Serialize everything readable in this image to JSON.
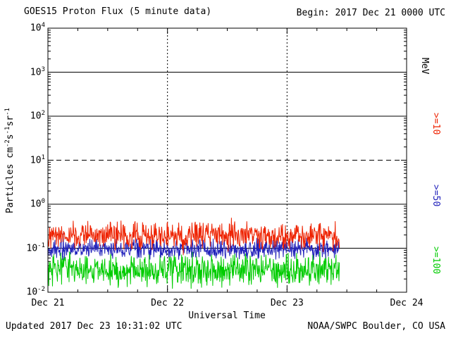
{
  "header": {
    "title": "GOES15 Proton Flux (5 minute data)",
    "begin": "Begin: 2017 Dec 21 0000 UTC"
  },
  "axes": {
    "ylabel_text": "Particles cm⁻²s⁻¹sr⁻¹",
    "ylabel_parts": [
      [
        "t",
        "Particles cm"
      ],
      [
        "s",
        "-2"
      ],
      [
        "t",
        "s"
      ],
      [
        "s",
        "-1"
      ],
      [
        "t",
        "sr"
      ],
      [
        "s",
        "-1"
      ]
    ],
    "xlabel": "Universal Time"
  },
  "legend": {
    "unit": "MeV",
    "items": [
      {
        "label": ">=10",
        "color": "#ee2200"
      },
      {
        "label": ">=50",
        "color": "#2222bb"
      },
      {
        "label": ">=100",
        "color": "#00cc00"
      }
    ]
  },
  "footer": {
    "updated": "Updated 2017 Dec 23 10:31:02 UTC",
    "credit": "NOAA/SWPC Boulder, CO USA"
  },
  "chart_data": {
    "type": "line",
    "title": "GOES15 Proton Flux (5 minute data)",
    "xlabel": "Universal Time",
    "ylabel": "Particles cm⁻²s⁻¹sr⁻¹",
    "x_ticks": [
      "Dec 21",
      "Dec 22",
      "Dec 23",
      "Dec 24"
    ],
    "x_range_days": 3,
    "data_end_day": 2.4375,
    "cadence_minutes": 5,
    "y_scale": "log",
    "y_log_range": [
      -2,
      4
    ],
    "y_tick_exponents": [
      4,
      3,
      2,
      1,
      0,
      -1,
      -2
    ],
    "hlines_solid": [
      3,
      2,
      0,
      -1
    ],
    "hlines_dashed": [
      1
    ],
    "vlines_dotted_days": [
      1,
      2
    ],
    "grid": true,
    "legend_position": "right",
    "series": [
      {
        "name": ">=10 MeV",
        "label": ">=10",
        "color": "#ee2200",
        "log10_mean": -0.72,
        "log10_noise": 0.18,
        "spike_log10": 0.15,
        "approx_level": 0.19,
        "approx_range": [
          0.08,
          0.5
        ]
      },
      {
        "name": ">=50 MeV",
        "label": ">=50",
        "color": "#2222bb",
        "log10_mean": -1.02,
        "log10_noise": 0.13,
        "spike_log10": 0.18,
        "approx_level": 0.095,
        "approx_range": [
          0.05,
          0.2
        ]
      },
      {
        "name": ">=100 MeV",
        "label": ">=100",
        "color": "#00cc00",
        "log10_mean": -1.5,
        "log10_noise": 0.22,
        "spike_log10": 0.25,
        "approx_level": 0.032,
        "approx_range": [
          0.011,
          0.09
        ]
      }
    ]
  }
}
